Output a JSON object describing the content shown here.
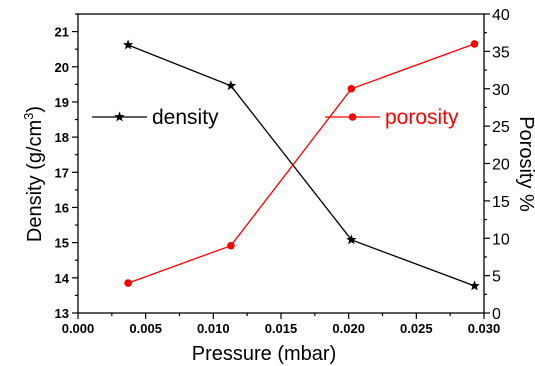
{
  "chart_data": {
    "type": "line",
    "xlabel": "Pressure (mbar)",
    "ylabel_left": "Density (g/cm",
    "ylabel_left_sup": "3",
    "ylabel_left_end": ")",
    "ylabel_right": "Porosity %",
    "xlim": [
      0.0,
      0.03
    ],
    "ylim_left": [
      13,
      21.5
    ],
    "ylim_right": [
      0,
      40
    ],
    "x_ticks": [
      "0.000",
      "0.005",
      "0.010",
      "0.015",
      "0.020",
      "0.025",
      "0.030"
    ],
    "y_left_ticks": [
      "13",
      "14",
      "15",
      "16",
      "17",
      "18",
      "19",
      "20",
      "21"
    ],
    "y_right_ticks": [
      "0",
      "5",
      "10",
      "15",
      "20",
      "25",
      "30",
      "35",
      "40"
    ],
    "series": [
      {
        "name": "density",
        "axis": "left",
        "color": "#000000",
        "marker": "star",
        "x": [
          0.0037,
          0.0113,
          0.0202,
          0.0293
        ],
        "y": [
          20.62,
          19.46,
          15.08,
          13.77
        ]
      },
      {
        "name": "porosity",
        "axis": "right",
        "color": "#ff0000",
        "marker": "circle",
        "x": [
          0.0037,
          0.0113,
          0.0202,
          0.0293
        ],
        "y": [
          4.0,
          9.0,
          30.0,
          36.0
        ]
      }
    ],
    "legend": [
      {
        "series": "density",
        "placement": "left"
      },
      {
        "series": "porosity",
        "placement": "right"
      }
    ]
  }
}
